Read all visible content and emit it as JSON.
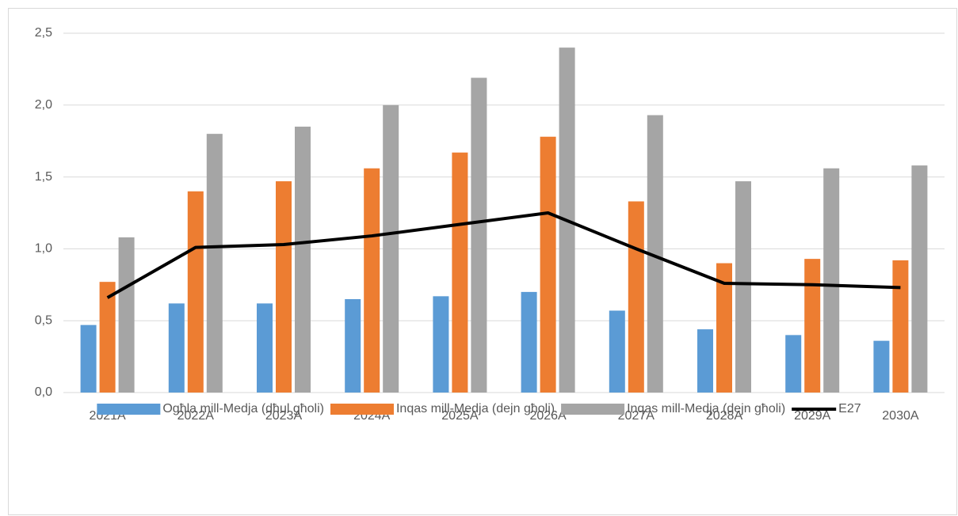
{
  "chart_data": {
    "type": "bar",
    "categories": [
      "2021A",
      "2022A",
      "2023A",
      "2024A",
      "2025A",
      "2026A",
      "2027A",
      "2028A",
      "2029A",
      "2030A"
    ],
    "series": [
      {
        "name": "Ogħla mill-Medja (dħul għoli)",
        "color": "#5b9bd5",
        "values": [
          0.47,
          0.62,
          0.62,
          0.65,
          0.67,
          0.7,
          0.57,
          0.44,
          0.4,
          0.36
        ]
      },
      {
        "name": "Inqas mill-Medja (dejn għoli)",
        "color": "#ed7d31",
        "values": [
          0.77,
          1.4,
          1.47,
          1.56,
          1.67,
          1.78,
          1.33,
          0.9,
          0.93,
          0.92
        ]
      },
      {
        "name": "Inqas mill-Medja (dejn għoli)",
        "color": "#a5a5a5",
        "values": [
          1.08,
          1.8,
          1.85,
          2.0,
          2.19,
          2.4,
          1.93,
          1.47,
          1.56,
          1.58
        ]
      },
      {
        "name": "E27",
        "color": "#000000",
        "type": "line",
        "values": [
          0.66,
          1.01,
          1.03,
          1.09,
          1.17,
          1.25,
          1.0,
          0.76,
          0.75,
          0.73
        ]
      }
    ],
    "ylim": [
      0,
      2.5
    ],
    "yticks": [
      {
        "value": 0,
        "label": "0,0"
      },
      {
        "value": 0.5,
        "label": "0,5"
      },
      {
        "value": 1,
        "label": "1,0"
      },
      {
        "value": 1.5,
        "label": "1,5"
      },
      {
        "value": 2,
        "label": "2,0"
      },
      {
        "value": 2.5,
        "label": "2,5"
      }
    ],
    "grid": true,
    "legend": "bottom"
  }
}
